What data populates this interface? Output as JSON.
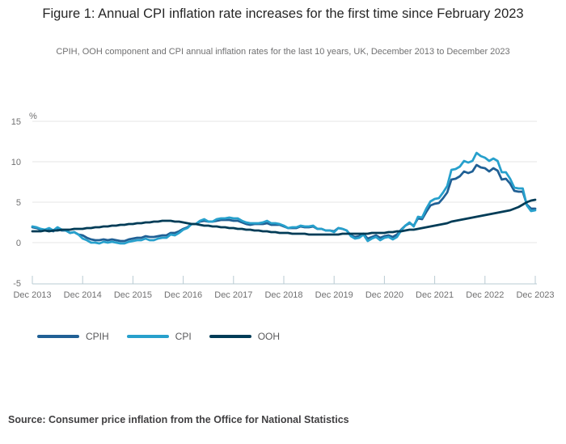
{
  "figure": {
    "title": "Figure 1: Annual CPI inflation rate increases for the first time since February 2023",
    "subtitle": "CPIH, OOH component and CPI annual inflation rates for the last 10 years, UK, December 2013 to December 2023",
    "source": "Source: Consumer price inflation from the Office for National Statistics"
  },
  "chart_data": {
    "type": "line",
    "title": "Figure 1: Annual CPI inflation rate increases for the first time since February 2023",
    "xlabel": "",
    "ylabel": "%",
    "unit": "%",
    "ylim": [
      -5,
      15
    ],
    "y_ticks": [
      -5,
      0,
      5,
      10,
      15
    ],
    "grid": "horizontal gridlines at y ticks",
    "legend_position": "bottom-left",
    "x_interval": "monthly",
    "x_start": "Dec 2013",
    "x_end": "Dec 2023",
    "x_tick_labels": [
      "Dec 2013",
      "Dec 2014",
      "Dec 2015",
      "Dec 2016",
      "Dec 2017",
      "Dec 2018",
      "Dec 2019",
      "Dec 2020",
      "Dec 2021",
      "Dec 2022",
      "Dec 2023"
    ],
    "series": [
      {
        "name": "CPIH",
        "color": "#206095",
        "values": [
          1.9,
          1.8,
          1.6,
          1.5,
          1.6,
          1.4,
          1.8,
          1.5,
          1.5,
          1.2,
          1.3,
          1.0,
          0.9,
          0.6,
          0.4,
          0.3,
          0.3,
          0.4,
          0.3,
          0.4,
          0.3,
          0.2,
          0.2,
          0.4,
          0.5,
          0.6,
          0.6,
          0.8,
          0.7,
          0.7,
          0.8,
          0.9,
          0.9,
          1.2,
          1.2,
          1.4,
          1.7,
          1.9,
          2.3,
          2.3,
          2.6,
          2.7,
          2.6,
          2.6,
          2.7,
          2.8,
          2.8,
          2.8,
          2.7,
          2.7,
          2.5,
          2.3,
          2.2,
          2.3,
          2.3,
          2.3,
          2.4,
          2.2,
          2.2,
          2.2,
          2.0,
          1.8,
          1.8,
          1.8,
          2.0,
          1.9,
          1.9,
          2.0,
          1.7,
          1.7,
          1.5,
          1.5,
          1.4,
          1.8,
          1.7,
          1.5,
          0.9,
          0.7,
          0.8,
          1.1,
          0.5,
          0.7,
          0.9,
          0.6,
          0.8,
          0.9,
          0.7,
          1.0,
          1.6,
          2.1,
          2.4,
          2.1,
          3.0,
          2.9,
          3.8,
          4.6,
          4.8,
          4.9,
          5.5,
          6.2,
          7.8,
          7.9,
          8.2,
          8.8,
          8.6,
          8.8,
          9.6,
          9.3,
          9.2,
          8.8,
          9.2,
          8.9,
          7.8,
          7.9,
          7.3,
          6.4,
          6.3,
          6.3,
          4.7,
          4.2,
          4.2
        ]
      },
      {
        "name": "CPI",
        "color": "#27A0CC",
        "values": [
          2.0,
          1.9,
          1.7,
          1.6,
          1.8,
          1.5,
          1.9,
          1.6,
          1.5,
          1.2,
          1.3,
          1.0,
          0.5,
          0.3,
          0.0,
          0.0,
          -0.1,
          0.1,
          0.0,
          0.1,
          0.0,
          -0.1,
          -0.1,
          0.1,
          0.2,
          0.3,
          0.3,
          0.5,
          0.3,
          0.3,
          0.5,
          0.6,
          0.6,
          1.0,
          0.9,
          1.2,
          1.6,
          1.8,
          2.3,
          2.3,
          2.7,
          2.9,
          2.6,
          2.6,
          2.9,
          3.0,
          3.0,
          3.1,
          3.0,
          3.0,
          2.7,
          2.5,
          2.4,
          2.4,
          2.4,
          2.5,
          2.7,
          2.4,
          2.4,
          2.3,
          2.1,
          1.8,
          1.9,
          1.9,
          2.1,
          2.0,
          2.0,
          2.1,
          1.7,
          1.7,
          1.5,
          1.5,
          1.3,
          1.8,
          1.7,
          1.5,
          0.8,
          0.5,
          0.6,
          1.0,
          0.2,
          0.5,
          0.7,
          0.3,
          0.6,
          0.7,
          0.4,
          0.7,
          1.5,
          2.1,
          2.5,
          2.0,
          3.2,
          3.1,
          4.2,
          5.1,
          5.4,
          5.5,
          6.2,
          7.0,
          9.0,
          9.1,
          9.4,
          10.1,
          9.9,
          10.1,
          11.1,
          10.7,
          10.5,
          10.1,
          10.4,
          10.1,
          8.7,
          8.7,
          7.9,
          6.8,
          6.7,
          6.7,
          4.6,
          3.9,
          4.0
        ]
      },
      {
        "name": "OOH",
        "color": "#003C57",
        "values": [
          1.4,
          1.4,
          1.4,
          1.5,
          1.4,
          1.5,
          1.5,
          1.6,
          1.6,
          1.6,
          1.7,
          1.7,
          1.7,
          1.8,
          1.8,
          1.9,
          1.9,
          2.0,
          2.0,
          2.1,
          2.1,
          2.2,
          2.2,
          2.3,
          2.3,
          2.4,
          2.4,
          2.5,
          2.5,
          2.6,
          2.6,
          2.7,
          2.7,
          2.7,
          2.6,
          2.6,
          2.5,
          2.4,
          2.3,
          2.3,
          2.2,
          2.1,
          2.1,
          2.0,
          2.0,
          1.9,
          1.9,
          1.8,
          1.8,
          1.7,
          1.7,
          1.6,
          1.6,
          1.5,
          1.5,
          1.4,
          1.4,
          1.3,
          1.3,
          1.2,
          1.2,
          1.2,
          1.1,
          1.1,
          1.1,
          1.1,
          1.0,
          1.0,
          1.0,
          1.0,
          1.0,
          1.0,
          1.0,
          1.0,
          1.1,
          1.1,
          1.1,
          1.1,
          1.1,
          1.1,
          1.1,
          1.2,
          1.2,
          1.2,
          1.2,
          1.3,
          1.3,
          1.4,
          1.4,
          1.5,
          1.6,
          1.6,
          1.7,
          1.8,
          1.9,
          2.0,
          2.1,
          2.2,
          2.3,
          2.4,
          2.6,
          2.7,
          2.8,
          2.9,
          3.0,
          3.1,
          3.2,
          3.3,
          3.4,
          3.5,
          3.6,
          3.7,
          3.8,
          3.9,
          4.0,
          4.2,
          4.4,
          4.7,
          5.0,
          5.2,
          5.3
        ]
      }
    ]
  }
}
